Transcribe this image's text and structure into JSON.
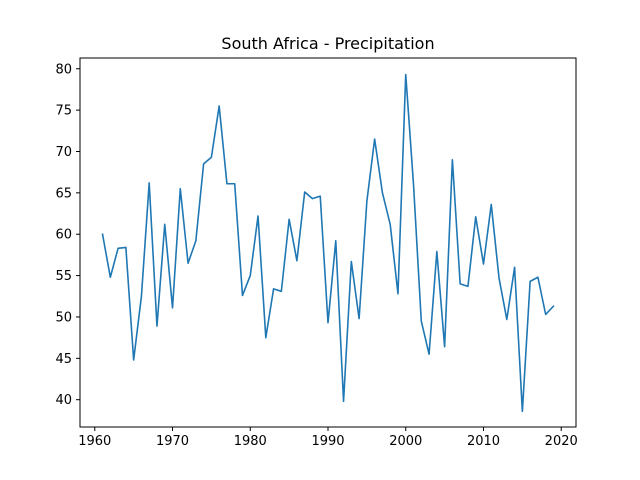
{
  "chart_data": {
    "type": "line",
    "title": "South Africa - Precipitation",
    "xlabel": "",
    "ylabel": "",
    "xlim": [
      1958.1,
      2021.9
    ],
    "ylim": [
      36.7,
      81.3
    ],
    "xticks": [
      1960,
      1970,
      1980,
      1990,
      2000,
      2010,
      2020
    ],
    "xtick_labels": [
      "1960",
      "1970",
      "1980",
      "1990",
      "2000",
      "2010",
      "2020"
    ],
    "yticks": [
      40,
      45,
      50,
      55,
      60,
      65,
      70,
      75,
      80
    ],
    "ytick_labels": [
      "40",
      "45",
      "50",
      "55",
      "60",
      "65",
      "70",
      "75",
      "80"
    ],
    "grid": false,
    "series": [
      {
        "name": "Precipitation",
        "color": "#1f77b4",
        "x": [
          1961,
          1962,
          1963,
          1964,
          1965,
          1966,
          1967,
          1968,
          1969,
          1970,
          1971,
          1972,
          1973,
          1974,
          1975,
          1976,
          1977,
          1978,
          1979,
          1980,
          1981,
          1982,
          1983,
          1984,
          1985,
          1986,
          1987,
          1988,
          1989,
          1990,
          1991,
          1992,
          1993,
          1994,
          1995,
          1996,
          1997,
          1998,
          1999,
          2000,
          2001,
          2002,
          2003,
          2004,
          2005,
          2006,
          2007,
          2008,
          2009,
          2010,
          2011,
          2012,
          2013,
          2014,
          2015,
          2016,
          2017,
          2018,
          2019
        ],
        "y": [
          60.0,
          54.8,
          58.3,
          58.4,
          44.8,
          52.5,
          66.2,
          48.9,
          61.2,
          51.1,
          65.5,
          56.5,
          59.2,
          68.5,
          69.3,
          75.5,
          66.1,
          66.1,
          52.6,
          55.0,
          62.2,
          47.5,
          53.4,
          53.1,
          61.8,
          56.8,
          65.1,
          64.3,
          64.6,
          49.3,
          59.2,
          39.8,
          56.7,
          49.8,
          64.0,
          71.5,
          65.0,
          61.2,
          52.8,
          79.3,
          66.0,
          49.5,
          45.5,
          57.9,
          46.4,
          69.0,
          54.0,
          53.7,
          62.1,
          56.4,
          63.6,
          54.7,
          49.7,
          56.0,
          38.6,
          54.3,
          54.8,
          50.3,
          51.3
        ]
      }
    ]
  }
}
